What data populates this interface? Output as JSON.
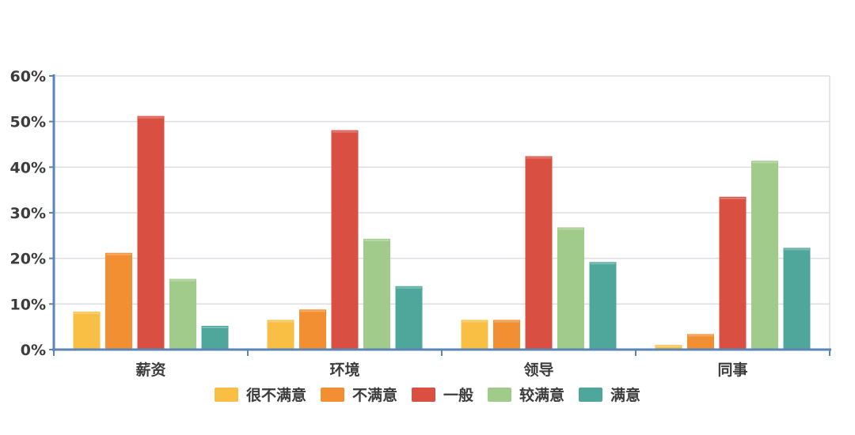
{
  "chart_data": {
    "type": "bar",
    "title": "",
    "xlabel": "",
    "ylabel": "",
    "categories": [
      "薪资",
      "环境",
      "领导",
      "同事"
    ],
    "y_ticks": [
      "0%",
      "10%",
      "20%",
      "30%",
      "40%",
      "50%",
      "60%"
    ],
    "ylim": [
      0,
      60
    ],
    "grid": true,
    "legend_position": "bottom",
    "series": [
      {
        "name": "很不满意",
        "color": "#F9BF45",
        "values": [
          8.3,
          6.5,
          6.5,
          1.0
        ]
      },
      {
        "name": "不满意",
        "color": "#F28F32",
        "values": [
          21.2,
          8.8,
          6.5,
          3.4
        ]
      },
      {
        "name": "一般",
        "color": "#D94F41",
        "values": [
          51.2,
          48.1,
          42.4,
          33.5
        ]
      },
      {
        "name": "较满意",
        "color": "#A1CB8B",
        "values": [
          15.5,
          24.3,
          26.8,
          41.4
        ]
      },
      {
        "name": "满意",
        "color": "#4FA79C",
        "values": [
          5.2,
          13.9,
          19.2,
          22.3
        ]
      }
    ]
  }
}
